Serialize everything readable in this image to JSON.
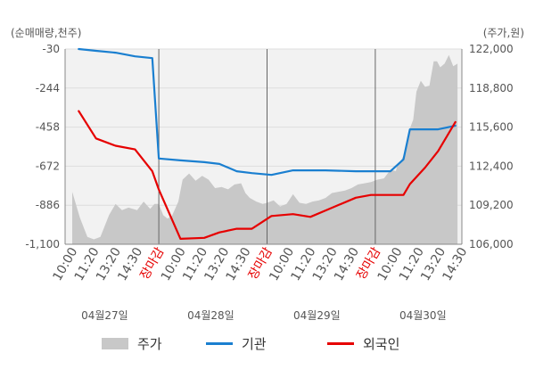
{
  "chart_data": {
    "type": "line",
    "left_unit_label": "(순매매량,천주)",
    "right_unit_label": "(주가,원)",
    "left_axis": {
      "min": -1100,
      "max": -30,
      "ticks": [
        "-30",
        "-244",
        "-458",
        "-672",
        "-886",
        "-1,100"
      ]
    },
    "right_axis": {
      "min": 106000,
      "max": 122000,
      "ticks": [
        "122,000",
        "118,800",
        "115,600",
        "112,400",
        "109,200",
        "106,000"
      ]
    },
    "x_tick_labels": [
      {
        "text": "10:00",
        "color": "#555555"
      },
      {
        "text": "11:20",
        "color": "#555555"
      },
      {
        "text": "13:20",
        "color": "#555555"
      },
      {
        "text": "14:30",
        "color": "#555555"
      },
      {
        "text": "장마감",
        "color": "#e60000"
      },
      {
        "text": "10:00",
        "color": "#555555"
      },
      {
        "text": "11:20",
        "color": "#555555"
      },
      {
        "text": "13:20",
        "color": "#555555"
      },
      {
        "text": "14:30",
        "color": "#555555"
      },
      {
        "text": "장마감",
        "color": "#e60000"
      },
      {
        "text": "10:00",
        "color": "#555555"
      },
      {
        "text": "11:20",
        "color": "#555555"
      },
      {
        "text": "13:20",
        "color": "#555555"
      },
      {
        "text": "14:30",
        "color": "#555555"
      },
      {
        "text": "장마감",
        "color": "#e60000"
      },
      {
        "text": "10:00",
        "color": "#555555"
      },
      {
        "text": "11:20",
        "color": "#555555"
      },
      {
        "text": "13:20",
        "color": "#555555"
      },
      {
        "text": "14:30",
        "color": "#555555"
      }
    ],
    "date_labels": [
      "04월27일",
      "04월28일",
      "04월29일",
      "04월30일"
    ],
    "legend": [
      {
        "label": "주가",
        "type": "area",
        "color": "#c8c8c8"
      },
      {
        "label": "기관",
        "type": "line",
        "color": "#1a7fd0"
      },
      {
        "label": "외국인",
        "type": "line",
        "color": "#e60000"
      }
    ],
    "series": [
      {
        "name": "기관",
        "color": "#1a7fd0",
        "x": [
          0.3,
          1.1,
          2.0,
          2.9,
          3.7,
          4.0,
          5.0,
          6.1,
          6.8,
          7.6,
          8.3,
          9.2,
          10.2,
          11.0,
          11.7,
          13.1,
          13.8,
          14.3,
          14.7,
          15.3,
          15.6,
          16.3,
          16.9,
          17.7
        ],
        "values": [
          -30,
          -40,
          -50,
          -70,
          -80,
          -630,
          -640,
          -650,
          -660,
          -700,
          -710,
          -720,
          -695,
          -695,
          -695,
          -700,
          -700,
          -700,
          -700,
          -635,
          -470,
          -470,
          -470,
          -450
        ]
      },
      {
        "name": "외국인",
        "color": "#e60000",
        "x": [
          0.3,
          1.1,
          2.0,
          2.9,
          3.7,
          4.0,
          5.0,
          6.1,
          6.8,
          7.6,
          8.3,
          9.2,
          10.2,
          11.0,
          11.7,
          13.1,
          13.8,
          14.3,
          14.7,
          15.3,
          15.6,
          16.3,
          16.9,
          17.7
        ],
        "values": [
          -370,
          -520,
          -560,
          -580,
          -700,
          -800,
          -1070,
          -1065,
          -1035,
          -1015,
          -1015,
          -945,
          -935,
          -950,
          -915,
          -845,
          -830,
          -830,
          -830,
          -830,
          -770,
          -680,
          -590,
          -430
        ]
      },
      {
        "name": "주가",
        "type": "area",
        "color": "#c8c8c8",
        "x": [
          0,
          0.35,
          0.7,
          1.0,
          1.3,
          1.7,
          2.0,
          2.3,
          2.6,
          3.0,
          3.3,
          3.6,
          3.8,
          4.0,
          4.2,
          4.4,
          4.6,
          4.9,
          5.1,
          5.4,
          5.7,
          6.0,
          6.3,
          6.6,
          6.9,
          7.2,
          7.5,
          7.8,
          8.0,
          8.2,
          8.5,
          8.8,
          9.0,
          9.3,
          9.6,
          9.9,
          10.2,
          10.5,
          10.8,
          11.1,
          11.4,
          11.7,
          12.0,
          12.3,
          12.6,
          12.9,
          13.2,
          13.5,
          13.8,
          14.1,
          14.4,
          14.7,
          14.95,
          15.0,
          15.2,
          15.4,
          15.6,
          15.75,
          15.9,
          16.1,
          16.3,
          16.5,
          16.7,
          16.85,
          17.0,
          17.2,
          17.4,
          17.6,
          17.8
        ],
        "values": [
          110300,
          108200,
          106600,
          106400,
          106600,
          108400,
          109300,
          108800,
          109000,
          108800,
          109500,
          108900,
          109300,
          109300,
          108400,
          108100,
          108300,
          109500,
          111300,
          111800,
          111200,
          111600,
          111300,
          110600,
          110700,
          110500,
          110900,
          111000,
          110200,
          109800,
          109500,
          109300,
          109400,
          109600,
          109100,
          109300,
          110100,
          109400,
          109300,
          109500,
          109600,
          109800,
          110200,
          110300,
          110400,
          110600,
          110900,
          111000,
          111100,
          111300,
          111400,
          112100,
          112000,
          112400,
          112900,
          113600,
          115500,
          116200,
          118500,
          119400,
          118900,
          119000,
          121000,
          121000,
          120500,
          120800,
          121500,
          120600,
          120800
        ]
      }
    ]
  }
}
